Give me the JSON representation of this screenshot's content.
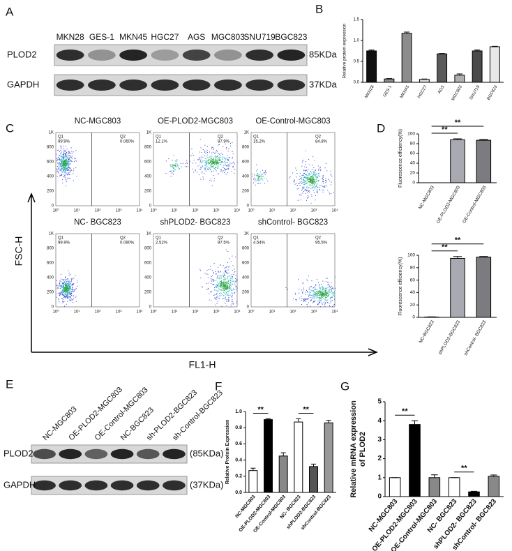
{
  "panel_labels": [
    "A",
    "B",
    "C",
    "D",
    "E",
    "F",
    "G"
  ],
  "blot_a": {
    "lanes": [
      "MKN28",
      "GES-1",
      "MKN45",
      "HGC27",
      "AGS",
      "MGC803",
      "SNU719",
      "BGC823"
    ],
    "rows": [
      "PLOD2",
      "GAPDH"
    ],
    "sizes": [
      "85KDa",
      "37KDa"
    ]
  },
  "flow": {
    "y_axis": "FSC-H",
    "x_axis": "FL1-H",
    "yticks": [
      "1K",
      "800",
      "600",
      "400",
      "200",
      "0"
    ],
    "xticks": [
      "10⁰",
      "10¹",
      "10²",
      "10³",
      "10⁴"
    ],
    "plots": [
      {
        "title": "NC-MGC803",
        "q1": "Q1",
        "q1_value": "99.9%",
        "q2": "Q2",
        "q2_value": "0.060%"
      },
      {
        "title": "OE-PLOD2-MGC803",
        "q1": "Q1",
        "q1_value": "12.1%",
        "q2": "Q2",
        "q2_value": "87.9%"
      },
      {
        "title": "OE-Control-MGC803",
        "q1": "Q1",
        "q1_value": "15.2%",
        "q2": "Q2",
        "q2_value": "84.8%"
      },
      {
        "title": "NC- BGC823",
        "q1": "Q1",
        "q1_value": "99.9%",
        "q2": "Q2",
        "q2_value": "0.090%"
      },
      {
        "title": "shPLOD2- BGC823",
        "q1": "Q1",
        "q1_value": "2.52%",
        "q2": "Q2",
        "q2_value": "97.5%"
      },
      {
        "title": "shControl- BGC823",
        "q1": "Q1",
        "q1_value": "4.54%",
        "q2": "Q2",
        "q2_value": "95.5%"
      }
    ]
  },
  "blot_e": {
    "lanes": [
      "NC-MGC803",
      "OE-PLOD2-MGC803",
      "OE-Control-MGC803",
      "NC-BGC823",
      "sh-PLOD2-BGC823",
      "sh-Control-BGC823"
    ],
    "rows": [
      "PLOD2",
      "GAPDH"
    ],
    "sizes": [
      "(85KDa)",
      "(37KDa)"
    ]
  },
  "chart_data": [
    {
      "type": "bar",
      "y_label": [
        "Relative protein expression"
      ],
      "categories": [
        "MKN28",
        "GES-1",
        "MKN45",
        "HGC27",
        "AGS",
        "MGC803",
        "SNU719",
        "BGC823"
      ],
      "values": [
        0.75,
        0.08,
        1.17,
        0.07,
        0.68,
        0.17,
        0.75,
        0.85
      ],
      "errors": [
        0.02,
        0.01,
        0.03,
        0.01,
        0.01,
        0.03,
        0.02,
        0.01
      ],
      "colors": [
        "#111111",
        "#8c8c8c",
        "#8c8c8c",
        "#d9d9d9",
        "#5a5a5a",
        "#b0b0b0",
        "#4a4a4a",
        "#e8e8e8"
      ],
      "ylim": [
        0,
        1.5
      ],
      "yticks": [
        {
          "value": 0,
          "label": "0.0"
        },
        {
          "value": 0.5,
          "label": "0.5"
        },
        {
          "value": 1,
          "label": "1.0"
        },
        {
          "value": 1.5,
          "label": "1.5"
        }
      ]
    },
    {
      "type": "bar",
      "y_label": [
        "Fluorescence efficiency(%)"
      ],
      "categories": [
        "NC-MGC803",
        "OE-PLOD2-MGC803",
        "OE-Control-MGC803"
      ],
      "values": [
        0,
        88,
        87
      ],
      "errors": [
        0,
        2,
        1.5
      ],
      "colors": [
        "#555555",
        "#a9a9b1",
        "#7b7b80"
      ],
      "ylim": [
        0,
        100
      ],
      "yticks": [
        0,
        20,
        40,
        60,
        80,
        100
      ],
      "annotations": [
        "**",
        "**"
      ]
    },
    {
      "type": "bar",
      "y_label": [
        "Fluorescence efficiency(%)"
      ],
      "categories": [
        "NC-BGC823",
        "shPLOD2-BGC823",
        "shControl- BGC823"
      ],
      "values": [
        0.5,
        95,
        97
      ],
      "errors": [
        0.3,
        3,
        1
      ],
      "colors": [
        "#555555",
        "#a9a9b1",
        "#7b7b80"
      ],
      "ylim": [
        0,
        100
      ],
      "yticks": [
        0,
        20,
        40,
        60,
        80,
        100
      ],
      "annotations": [
        "**",
        "**"
      ]
    },
    {
      "type": "bar",
      "y_label": [
        "Relative Protein Expression"
      ],
      "categories": [
        "NC-MGC803",
        "OE-PLOD2-MGC803",
        "OE-Control-MGC803",
        "NC- BGC823",
        "shPLOD2-BGC823",
        "shControl-BGC823"
      ],
      "values": [
        0.27,
        0.9,
        0.45,
        0.87,
        0.32,
        0.86
      ],
      "errors": [
        0.03,
        0.01,
        0.04,
        0.04,
        0.03,
        0.03
      ],
      "colors": [
        "#ffffff",
        "#000000",
        "#888888",
        "#ffffff",
        "#555555",
        "#999999"
      ],
      "ylim": [
        0,
        1
      ],
      "yticks": [
        {
          "value": 0,
          "label": "0.0"
        },
        {
          "value": 0.2,
          "label": "0.2"
        },
        {
          "value": 0.4,
          "label": "0.4"
        },
        {
          "value": 0.6,
          "label": "0.6"
        },
        {
          "value": 0.8,
          "label": "0.8"
        },
        {
          "value": 1,
          "label": "1.0"
        }
      ],
      "annotations": [
        "**",
        "**"
      ]
    },
    {
      "type": "bar",
      "y_label": [
        "Relative mRNA expression",
        "of PLOD2"
      ],
      "categories": [
        "NC-MGC803",
        "OE-PLOD2-MGC803",
        "OE-Control-MGC803",
        "NC- BGC823",
        "shPLOD2- BGC823",
        "shControl- BGC823"
      ],
      "values": [
        1,
        3.8,
        1,
        1,
        0.25,
        1.07
      ],
      "errors": [
        0,
        0.2,
        0.15,
        0,
        0.03,
        0.07
      ],
      "colors": [
        "#ffffff",
        "#000000",
        "#888888",
        "#ffffff",
        "#000000",
        "#888888"
      ],
      "ylim": [
        0,
        5
      ],
      "yticks": [
        0,
        1,
        2,
        3,
        4,
        5
      ],
      "annotations": [
        "**",
        "**"
      ]
    }
  ]
}
